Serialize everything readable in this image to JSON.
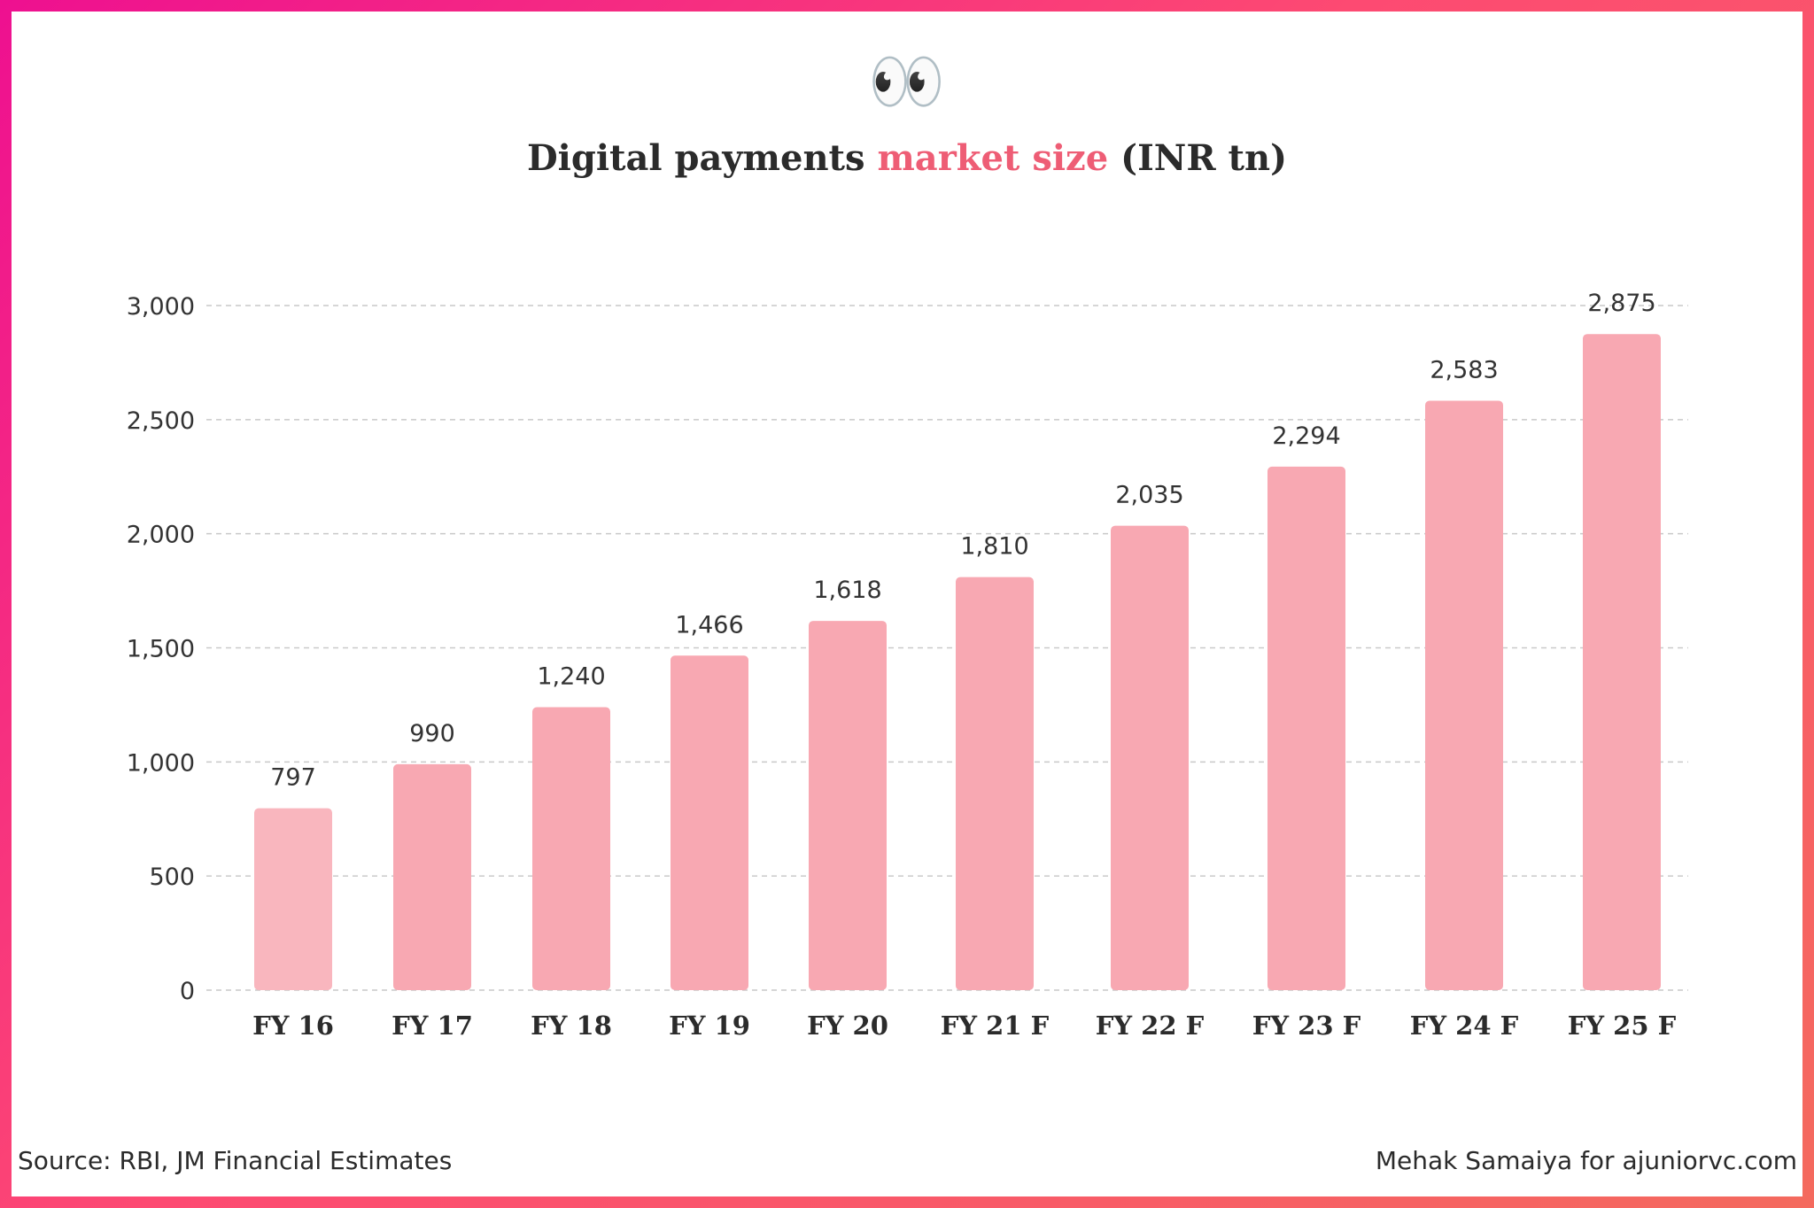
{
  "header": {
    "emoji": "👀",
    "title_part1": "Digital payments ",
    "title_accent": "market size",
    "title_part3": " (INR tn)"
  },
  "footer": {
    "source": "Source: RBI, JM Financial Estimates",
    "credit": "Mehak Samaiya for ajuniorvc.com"
  },
  "colors": {
    "accent": "#ee5d75",
    "bar": "#f8a8b2",
    "bar_first": "#f9b6be",
    "border_start": "#ee1090",
    "border_end": "#f46a5e"
  },
  "chart_data": {
    "type": "bar",
    "title": "Digital payments market size (INR tn)",
    "categories": [
      "FY 16",
      "FY 17",
      "FY 18",
      "FY 19",
      "FY 20",
      "FY 21 F",
      "FY 22 F",
      "FY 23 F",
      "FY 24 F",
      "FY 25 F"
    ],
    "values": [
      797,
      990,
      1240,
      1466,
      1618,
      1810,
      2035,
      2294,
      2583,
      2875
    ],
    "value_labels": [
      "797",
      "990",
      "1,240",
      "1,466",
      "1,618",
      "1,810",
      "2,035",
      "2,294",
      "2,583",
      "2,875"
    ],
    "yticks": [
      0,
      500,
      1000,
      1500,
      2000,
      2500,
      3000
    ],
    "ytick_labels": [
      "0",
      "500",
      "1,000",
      "1,500",
      "2,000",
      "2,500",
      "3,000"
    ],
    "ylim": [
      0,
      3000
    ],
    "grid": true,
    "xlabel": "",
    "ylabel": ""
  }
}
